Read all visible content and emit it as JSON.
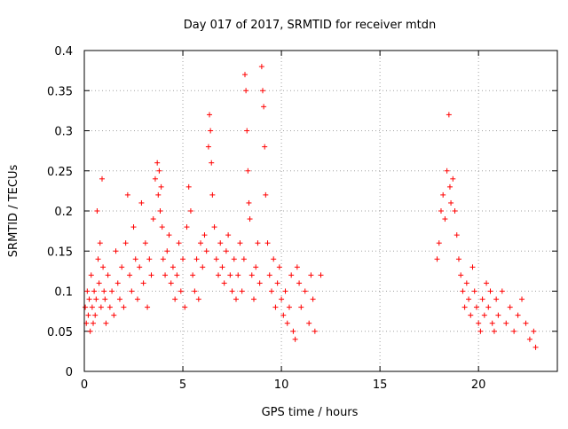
{
  "chart_data": {
    "type": "scatter",
    "title": "Day 017 of 2017, SRMTID for receiver mtdn",
    "xlabel": "GPS time / hours",
    "ylabel": "SRMTID / TECUs",
    "xlim": [
      0,
      24
    ],
    "ylim": [
      0,
      0.4
    ],
    "x_ticks": [
      0,
      5,
      10,
      15,
      20
    ],
    "y_ticks": [
      0,
      0.05,
      0.1,
      0.15,
      0.2,
      0.25,
      0.3,
      0.35,
      0.4
    ],
    "x_tick_labels": [
      "0",
      "5",
      "10",
      "15",
      "20"
    ],
    "y_tick_labels": [
      "0",
      "0.05",
      "0.1",
      "0.15",
      "0.2",
      "0.25",
      "0.3",
      "0.35",
      "0.4"
    ],
    "grid": true,
    "marker": "+",
    "color": "#ff0000",
    "series": [
      {
        "name": "SRMTID",
        "points": [
          [
            0.05,
            0.08
          ],
          [
            0.1,
            0.06
          ],
          [
            0.15,
            0.1
          ],
          [
            0.2,
            0.07
          ],
          [
            0.25,
            0.09
          ],
          [
            0.3,
            0.05
          ],
          [
            0.35,
            0.12
          ],
          [
            0.4,
            0.08
          ],
          [
            0.45,
            0.06
          ],
          [
            0.5,
            0.1
          ],
          [
            0.55,
            0.07
          ],
          [
            0.6,
            0.09
          ],
          [
            0.65,
            0.2
          ],
          [
            0.7,
            0.14
          ],
          [
            0.75,
            0.11
          ],
          [
            0.8,
            0.16
          ],
          [
            0.85,
            0.08
          ],
          [
            0.9,
            0.24
          ],
          [
            0.95,
            0.13
          ],
          [
            1.0,
            0.1
          ],
          [
            1.05,
            0.09
          ],
          [
            1.1,
            0.06
          ],
          [
            1.2,
            0.12
          ],
          [
            1.3,
            0.08
          ],
          [
            1.4,
            0.1
          ],
          [
            1.5,
            0.07
          ],
          [
            1.6,
            0.15
          ],
          [
            1.7,
            0.11
          ],
          [
            1.8,
            0.09
          ],
          [
            1.9,
            0.13
          ],
          [
            2.0,
            0.08
          ],
          [
            2.1,
            0.16
          ],
          [
            2.2,
            0.22
          ],
          [
            2.3,
            0.12
          ],
          [
            2.4,
            0.1
          ],
          [
            2.5,
            0.18
          ],
          [
            2.6,
            0.14
          ],
          [
            2.7,
            0.09
          ],
          [
            2.8,
            0.13
          ],
          [
            2.9,
            0.21
          ],
          [
            3.0,
            0.11
          ],
          [
            3.1,
            0.16
          ],
          [
            3.2,
            0.08
          ],
          [
            3.3,
            0.14
          ],
          [
            3.4,
            0.12
          ],
          [
            3.5,
            0.19
          ],
          [
            3.6,
            0.24
          ],
          [
            3.7,
            0.26
          ],
          [
            3.75,
            0.22
          ],
          [
            3.8,
            0.25
          ],
          [
            3.85,
            0.2
          ],
          [
            3.9,
            0.23
          ],
          [
            3.95,
            0.18
          ],
          [
            4.0,
            0.14
          ],
          [
            4.1,
            0.12
          ],
          [
            4.2,
            0.15
          ],
          [
            4.3,
            0.17
          ],
          [
            4.4,
            0.11
          ],
          [
            4.5,
            0.13
          ],
          [
            4.6,
            0.09
          ],
          [
            4.7,
            0.12
          ],
          [
            4.8,
            0.16
          ],
          [
            4.9,
            0.1
          ],
          [
            5.0,
            0.14
          ],
          [
            5.1,
            0.08
          ],
          [
            5.2,
            0.18
          ],
          [
            5.3,
            0.23
          ],
          [
            5.4,
            0.2
          ],
          [
            5.5,
            0.12
          ],
          [
            5.6,
            0.1
          ],
          [
            5.7,
            0.14
          ],
          [
            5.8,
            0.09
          ],
          [
            5.9,
            0.16
          ],
          [
            6.0,
            0.13
          ],
          [
            6.1,
            0.17
          ],
          [
            6.2,
            0.15
          ],
          [
            6.3,
            0.28
          ],
          [
            6.35,
            0.32
          ],
          [
            6.4,
            0.3
          ],
          [
            6.45,
            0.26
          ],
          [
            6.5,
            0.22
          ],
          [
            6.6,
            0.18
          ],
          [
            6.7,
            0.14
          ],
          [
            6.8,
            0.12
          ],
          [
            6.9,
            0.16
          ],
          [
            7.0,
            0.13
          ],
          [
            7.1,
            0.11
          ],
          [
            7.2,
            0.15
          ],
          [
            7.3,
            0.17
          ],
          [
            7.4,
            0.12
          ],
          [
            7.5,
            0.1
          ],
          [
            7.6,
            0.14
          ],
          [
            7.7,
            0.09
          ],
          [
            7.8,
            0.12
          ],
          [
            7.9,
            0.16
          ],
          [
            8.0,
            0.1
          ],
          [
            8.1,
            0.14
          ],
          [
            8.15,
            0.37
          ],
          [
            8.2,
            0.35
          ],
          [
            8.25,
            0.3
          ],
          [
            8.3,
            0.25
          ],
          [
            8.35,
            0.21
          ],
          [
            8.4,
            0.19
          ],
          [
            8.5,
            0.12
          ],
          [
            8.6,
            0.09
          ],
          [
            8.7,
            0.13
          ],
          [
            8.8,
            0.16
          ],
          [
            8.9,
            0.11
          ],
          [
            9.0,
            0.38
          ],
          [
            9.05,
            0.35
          ],
          [
            9.1,
            0.33
          ],
          [
            9.15,
            0.28
          ],
          [
            9.2,
            0.22
          ],
          [
            9.3,
            0.16
          ],
          [
            9.4,
            0.12
          ],
          [
            9.5,
            0.1
          ],
          [
            9.6,
            0.14
          ],
          [
            9.7,
            0.08
          ],
          [
            9.8,
            0.11
          ],
          [
            9.9,
            0.13
          ],
          [
            10.0,
            0.09
          ],
          [
            10.1,
            0.07
          ],
          [
            10.2,
            0.1
          ],
          [
            10.3,
            0.06
          ],
          [
            10.4,
            0.08
          ],
          [
            10.5,
            0.12
          ],
          [
            10.6,
            0.05
          ],
          [
            10.7,
            0.04
          ],
          [
            10.8,
            0.13
          ],
          [
            10.9,
            0.11
          ],
          [
            11.0,
            0.08
          ],
          [
            11.2,
            0.1
          ],
          [
            11.4,
            0.06
          ],
          [
            11.5,
            0.12
          ],
          [
            11.6,
            0.09
          ],
          [
            11.7,
            0.05
          ],
          [
            12.0,
            0.12
          ],
          [
            17.9,
            0.14
          ],
          [
            18.0,
            0.16
          ],
          [
            18.1,
            0.2
          ],
          [
            18.2,
            0.22
          ],
          [
            18.3,
            0.19
          ],
          [
            18.4,
            0.25
          ],
          [
            18.5,
            0.32
          ],
          [
            18.55,
            0.23
          ],
          [
            18.6,
            0.21
          ],
          [
            18.7,
            0.24
          ],
          [
            18.8,
            0.2
          ],
          [
            18.9,
            0.17
          ],
          [
            19.0,
            0.14
          ],
          [
            19.1,
            0.12
          ],
          [
            19.2,
            0.1
          ],
          [
            19.3,
            0.08
          ],
          [
            19.4,
            0.11
          ],
          [
            19.5,
            0.09
          ],
          [
            19.6,
            0.07
          ],
          [
            19.7,
            0.13
          ],
          [
            19.8,
            0.1
          ],
          [
            19.9,
            0.08
          ],
          [
            20.0,
            0.06
          ],
          [
            20.1,
            0.05
          ],
          [
            20.2,
            0.09
          ],
          [
            20.3,
            0.07
          ],
          [
            20.4,
            0.11
          ],
          [
            20.5,
            0.08
          ],
          [
            20.6,
            0.1
          ],
          [
            20.7,
            0.06
          ],
          [
            20.8,
            0.05
          ],
          [
            20.9,
            0.09
          ],
          [
            21.0,
            0.07
          ],
          [
            21.2,
            0.1
          ],
          [
            21.4,
            0.06
          ],
          [
            21.6,
            0.08
          ],
          [
            21.8,
            0.05
          ],
          [
            22.0,
            0.07
          ],
          [
            22.2,
            0.09
          ],
          [
            22.4,
            0.06
          ],
          [
            22.6,
            0.04
          ],
          [
            22.8,
            0.05
          ],
          [
            22.9,
            0.03
          ]
        ]
      }
    ]
  }
}
